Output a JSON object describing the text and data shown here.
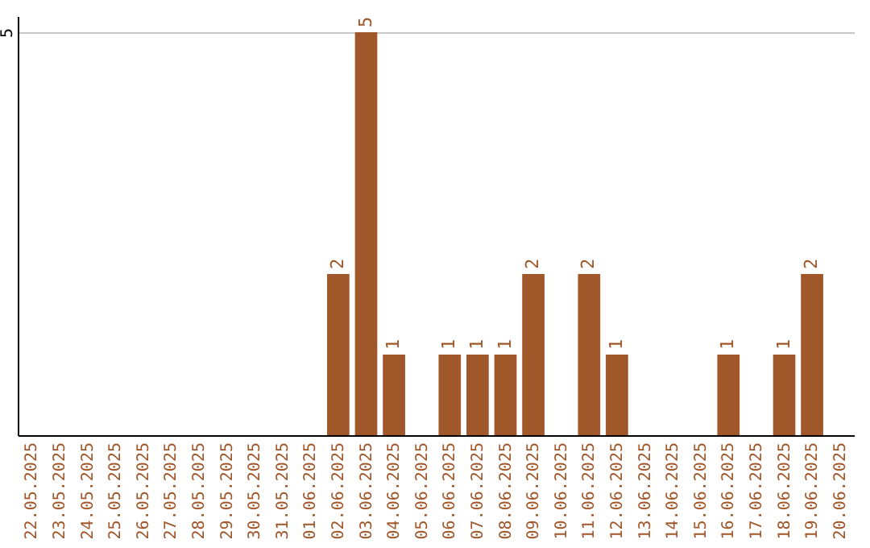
{
  "chart_data": {
    "type": "bar",
    "categories": [
      "22.05.2025",
      "23.05.2025",
      "24.05.2025",
      "25.05.2025",
      "26.05.2025",
      "27.05.2025",
      "28.05.2025",
      "29.05.2025",
      "30.05.2025",
      "31.05.2025",
      "01.06.2025",
      "02.06.2025",
      "03.06.2025",
      "04.06.2025",
      "05.06.2025",
      "06.06.2025",
      "07.06.2025",
      "08.06.2025",
      "09.06.2025",
      "10.06.2025",
      "11.06.2025",
      "12.06.2025",
      "13.06.2025",
      "14.06.2025",
      "15.06.2025",
      "16.06.2025",
      "17.06.2025",
      "18.06.2025",
      "19.06.2025",
      "20.06.2025"
    ],
    "values": [
      0,
      0,
      0,
      0,
      0,
      0,
      0,
      0,
      0,
      0,
      0,
      2,
      5,
      1,
      0,
      1,
      1,
      1,
      2,
      0,
      2,
      1,
      0,
      0,
      0,
      1,
      0,
      1,
      2,
      0
    ],
    "value_labels": [
      null,
      null,
      null,
      null,
      null,
      null,
      null,
      null,
      null,
      null,
      null,
      "2",
      "5",
      "1",
      null,
      "1",
      "1",
      "1",
      "2",
      null,
      "2",
      "1",
      null,
      null,
      null,
      "1",
      null,
      "1",
      "2",
      null
    ],
    "color": "#a0572a",
    "ylim": [
      0,
      5.2
    ],
    "yticks": [
      5
    ],
    "grid": "y"
  }
}
